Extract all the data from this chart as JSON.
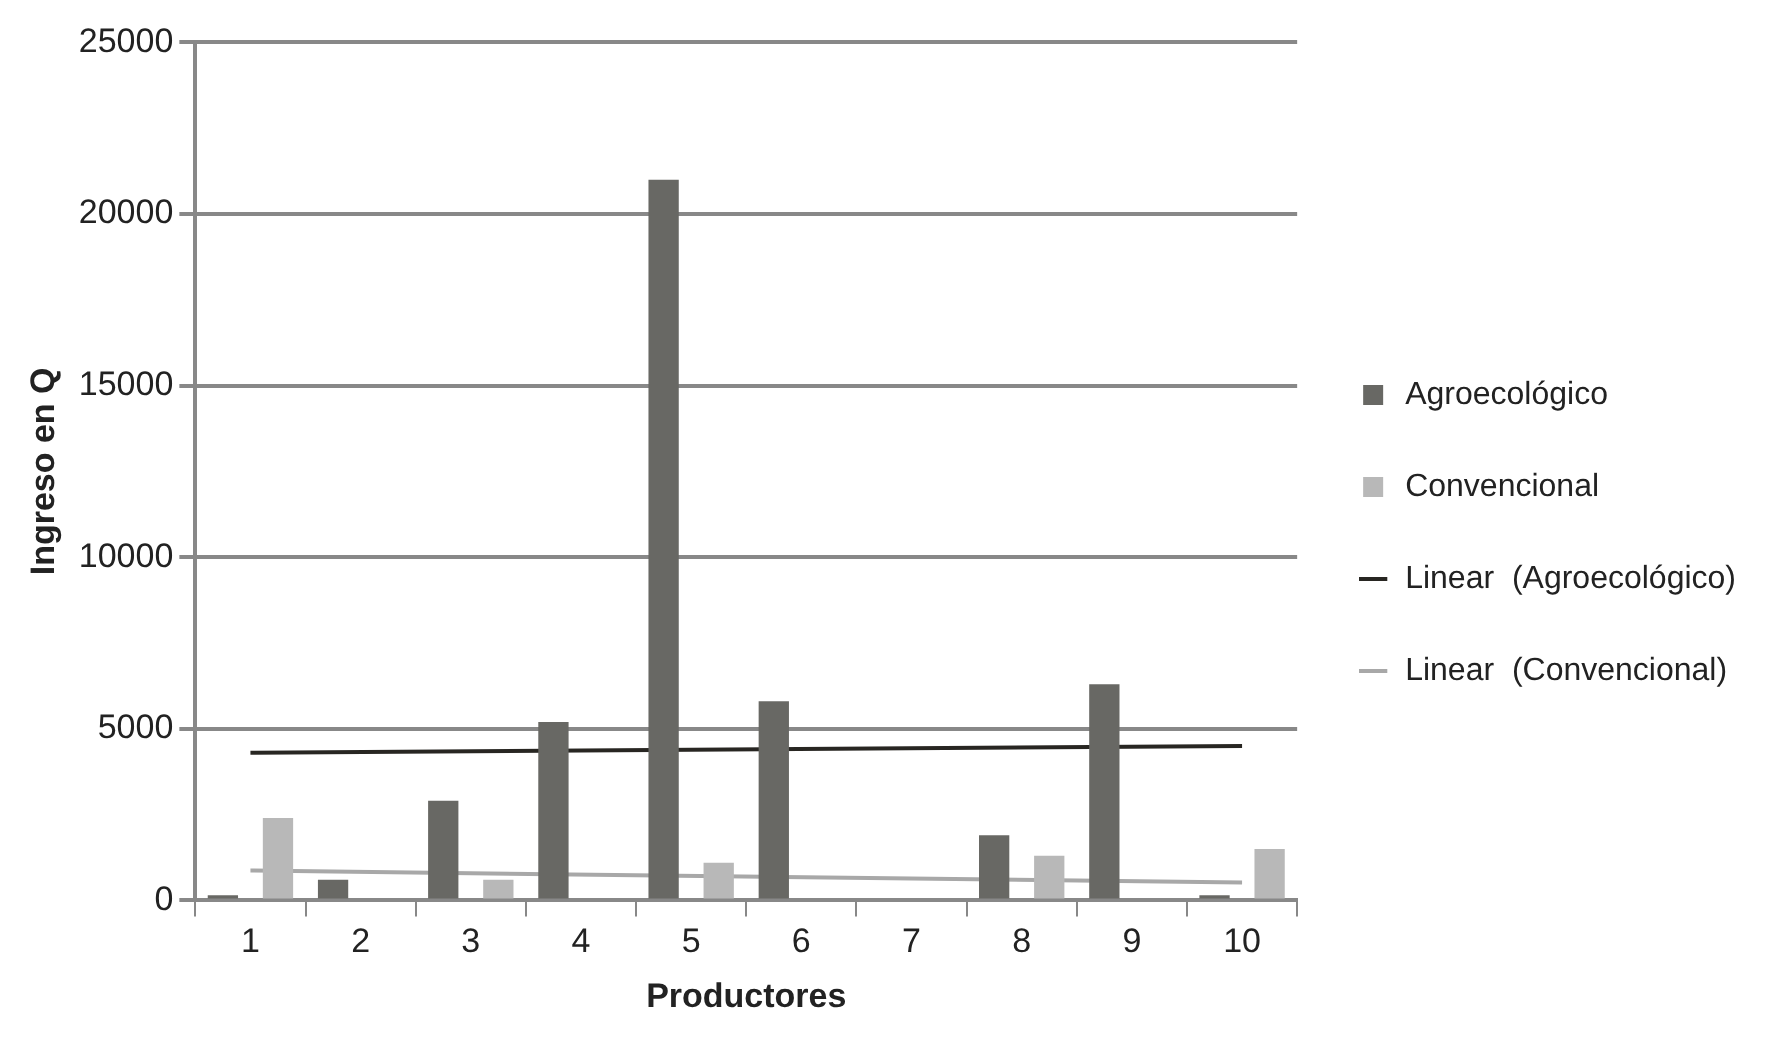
{
  "chart_data": {
    "type": "bar",
    "xlabel": "Productores",
    "ylabel": "Ingreso en Q",
    "categories": [
      "1",
      "2",
      "3",
      "4",
      "5",
      "6",
      "7",
      "8",
      "9",
      "10"
    ],
    "series": [
      {
        "name": "Agroecológico",
        "color": "#686864",
        "values": [
          150,
          600,
          2900,
          5200,
          21000,
          5800,
          0,
          1900,
          6300,
          150
        ]
      },
      {
        "name": "Convencional",
        "color": "#b8b8b8",
        "values": [
          2400,
          0,
          600,
          0,
          1100,
          0,
          0,
          1300,
          0,
          1500
        ]
      },
      {
        "name": "Linear  (Agroecológico)",
        "type": "line",
        "color": "#282622",
        "x": [
          "1",
          "10"
        ],
        "values": [
          4300,
          4500
        ]
      },
      {
        "name": "Linear  (Convencional)",
        "type": "line",
        "color": "#a8a8a8",
        "x": [
          "1",
          "10"
        ],
        "values": [
          870,
          520
        ]
      }
    ],
    "ylim": [
      0,
      25000
    ],
    "yticks": [
      0,
      5000,
      10000,
      15000,
      20000,
      25000
    ],
    "grid": "y",
    "legend": "right",
    "marker": "none"
  }
}
